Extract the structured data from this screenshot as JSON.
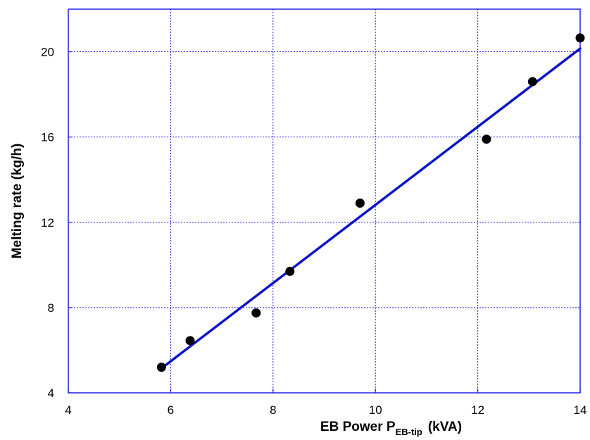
{
  "chart_data": {
    "type": "scatter",
    "xlabel": {
      "main": "EB Power P",
      "subscript": "EB-tip",
      "unit": "(kVA)"
    },
    "ylabel": "Melting rate (kg/h)",
    "xlim": [
      4,
      14
    ],
    "ylim": [
      4,
      22
    ],
    "x_ticks": [
      4,
      6,
      8,
      10,
      12,
      14
    ],
    "y_ticks": [
      4,
      8,
      12,
      16,
      20
    ],
    "grid": true,
    "colors": {
      "points": "#000000",
      "fit_line": "#0a14c8",
      "frame": "#1e1ee6",
      "grid": "#1e1ee6"
    },
    "series": [
      {
        "type": "scatter",
        "x": [
          5.82,
          6.38,
          7.67,
          8.33,
          9.7,
          12.17,
          13.07,
          14.0
        ],
        "y": [
          5.2,
          6.45,
          7.75,
          9.7,
          12.9,
          15.9,
          18.6,
          20.65
        ]
      },
      {
        "type": "line",
        "x": [
          5.82,
          14.0
        ],
        "y": [
          5.15,
          20.15
        ]
      }
    ]
  }
}
